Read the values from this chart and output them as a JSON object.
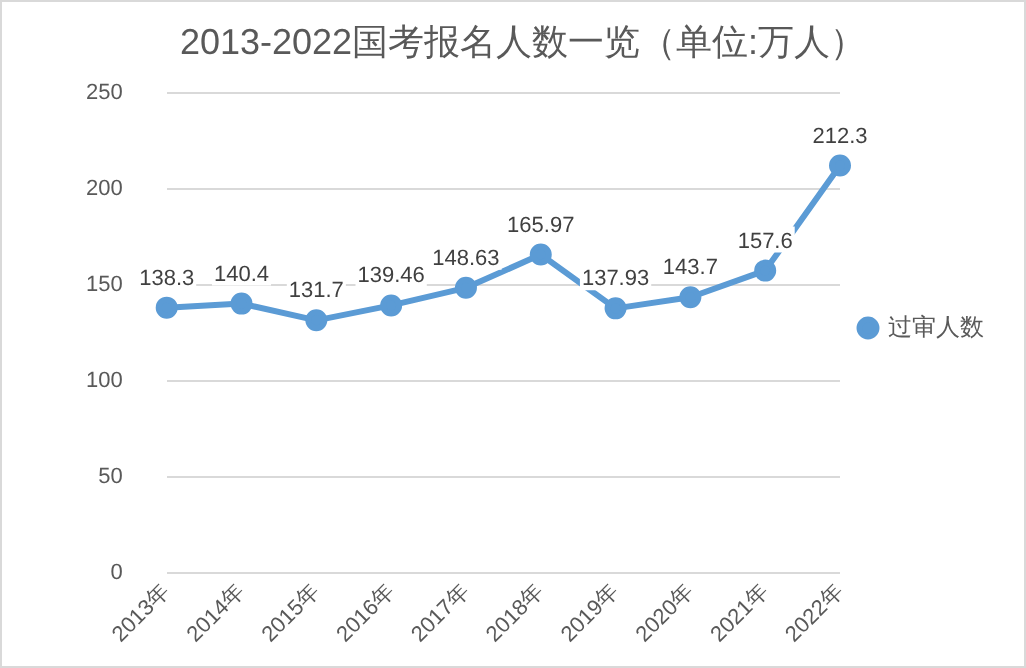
{
  "chart_data": {
    "type": "line",
    "title": "2013-2022国考报名人数一览（单位:万人）",
    "categories": [
      "2013年",
      "2014年",
      "2015年",
      "2016年",
      "2017年",
      "2018年",
      "2019年",
      "2020年",
      "2021年",
      "2022年"
    ],
    "series": [
      {
        "name": "过审人数",
        "color": "#5b9bd5",
        "values": [
          138.3,
          140.4,
          131.7,
          139.46,
          148.63,
          165.97,
          137.93,
          143.7,
          157.6,
          212.3
        ]
      }
    ],
    "ylim": [
      0,
      250
    ],
    "yticks": [
      0,
      50,
      100,
      150,
      200,
      250
    ],
    "grid": "y",
    "legend": "right",
    "marker": "circle",
    "line_style": "solid",
    "data_labels": true
  }
}
